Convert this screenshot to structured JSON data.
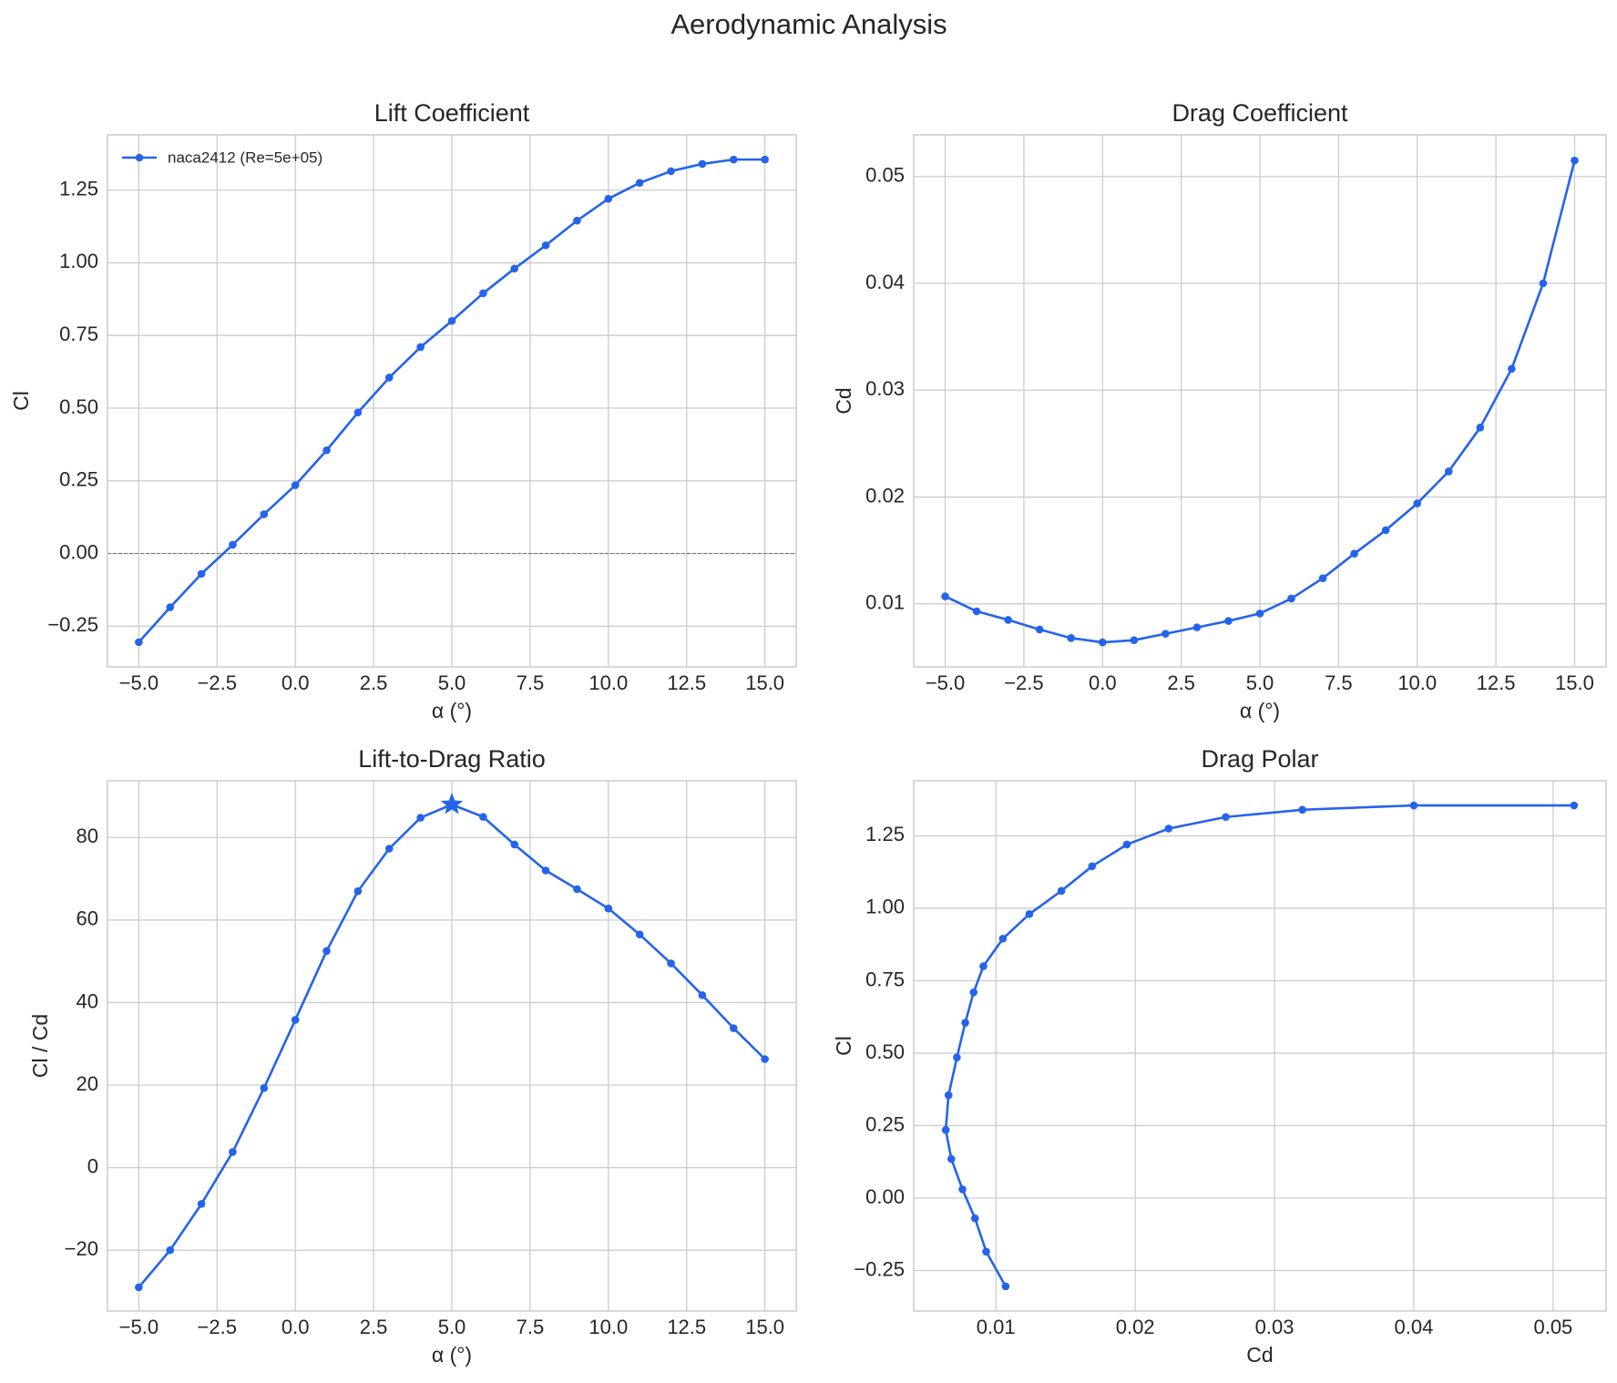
{
  "title": "Aerodynamic Analysis",
  "chart_data": [
    {
      "type": "line",
      "title": "Lift Coefficient",
      "xlabel": "α (°)",
      "ylabel": "Cl",
      "x": [
        -5,
        -4,
        -3,
        -2,
        -1,
        0,
        1,
        2,
        3,
        4,
        5,
        6,
        7,
        8,
        9,
        10,
        11,
        12,
        13,
        14,
        15
      ],
      "series": [
        {
          "name": "naca2412 (Re=5e+05)",
          "color": "#2563eb",
          "values": [
            -0.305,
            -0.185,
            -0.07,
            0.03,
            0.135,
            0.235,
            0.355,
            0.485,
            0.605,
            0.71,
            0.8,
            0.895,
            0.98,
            1.06,
            1.145,
            1.22,
            1.275,
            1.315,
            1.34,
            1.355,
            1.355
          ]
        }
      ],
      "legend": "upper left",
      "hline": 0,
      "grid": true,
      "xlim": [
        -6,
        16
      ],
      "ylim": [
        -0.39,
        1.44
      ],
      "xticks": [
        {
          "value": -5,
          "label": "−5.0"
        },
        {
          "value": -2.5,
          "label": "−2.5"
        },
        {
          "value": 0,
          "label": "0.0"
        },
        2.5,
        {
          "value": 5,
          "label": "5.0"
        },
        7.5,
        {
          "value": 10,
          "label": "10.0"
        },
        12.5,
        {
          "value": 15,
          "label": "15.0"
        }
      ],
      "yticks": [
        {
          "value": -0.25,
          "label": "−0.25"
        },
        {
          "value": 0,
          "label": "0.00"
        },
        0.25,
        {
          "value": 0.5,
          "label": "0.50"
        },
        0.75,
        {
          "value": 1,
          "label": "1.00"
        },
        1.25
      ]
    },
    {
      "type": "line",
      "title": "Drag Coefficient",
      "xlabel": "α (°)",
      "ylabel": "Cd",
      "x": [
        -5,
        -4,
        -3,
        -2,
        -1,
        0,
        1,
        2,
        3,
        4,
        5,
        6,
        7,
        8,
        9,
        10,
        11,
        12,
        13,
        14,
        15
      ],
      "series": [
        {
          "color": "#2563eb",
          "values": [
            0.0107,
            0.0093,
            0.0085,
            0.0076,
            0.0068,
            0.0064,
            0.0066,
            0.0072,
            0.0078,
            0.0084,
            0.0091,
            0.0105,
            0.0124,
            0.0147,
            0.0169,
            0.0194,
            0.0224,
            0.0265,
            0.032,
            0.04,
            0.0515
          ]
        }
      ],
      "grid": true,
      "xlim": [
        -6,
        16
      ],
      "ylim": [
        0.0041,
        0.0539
      ],
      "xticks": [
        {
          "value": -5,
          "label": "−5.0"
        },
        {
          "value": -2.5,
          "label": "−2.5"
        },
        {
          "value": 0,
          "label": "0.0"
        },
        2.5,
        {
          "value": 5,
          "label": "5.0"
        },
        7.5,
        {
          "value": 10,
          "label": "10.0"
        },
        12.5,
        {
          "value": 15,
          "label": "15.0"
        }
      ],
      "yticks": [
        0.01,
        0.02,
        0.03,
        0.04,
        0.05
      ]
    },
    {
      "type": "line",
      "title": "Lift-to-Drag Ratio",
      "xlabel": "α (°)",
      "ylabel": "Cl / Cd",
      "x": [
        -5,
        -4,
        -3,
        -2,
        -1,
        0,
        1,
        2,
        3,
        4,
        5,
        6,
        7,
        8,
        9,
        10,
        11,
        12,
        13,
        14,
        15
      ],
      "series": [
        {
          "color": "#2563eb",
          "values": [
            -29,
            -20,
            -8.8,
            3.8,
            19.3,
            35.8,
            52.5,
            67,
            77.3,
            84.8,
            88,
            85,
            78.3,
            72,
            67.5,
            62.8,
            56.5,
            49.5,
            41.8,
            33.8,
            26.3
          ]
        }
      ],
      "highlight_max": "star",
      "grid": true,
      "xlim": [
        -6,
        16
      ],
      "ylim": [
        -34.75,
        93.75
      ],
      "xticks": [
        {
          "value": -5,
          "label": "−5.0"
        },
        {
          "value": -2.5,
          "label": "−2.5"
        },
        {
          "value": 0,
          "label": "0.0"
        },
        2.5,
        {
          "value": 5,
          "label": "5.0"
        },
        7.5,
        {
          "value": 10,
          "label": "10.0"
        },
        12.5,
        {
          "value": 15,
          "label": "15.0"
        }
      ],
      "yticks": [
        {
          "value": -20,
          "label": "−20"
        },
        0,
        20,
        40,
        60,
        80
      ]
    },
    {
      "type": "line",
      "title": "Drag Polar",
      "xlabel": "Cd",
      "ylabel": "Cl",
      "x": [
        0.0107,
        0.0093,
        0.0085,
        0.0076,
        0.0068,
        0.0064,
        0.0066,
        0.0072,
        0.0078,
        0.0084,
        0.0091,
        0.0105,
        0.0124,
        0.0147,
        0.0169,
        0.0194,
        0.0224,
        0.0265,
        0.032,
        0.04,
        0.0515
      ],
      "series": [
        {
          "color": "#2563eb",
          "values": [
            -0.305,
            -0.185,
            -0.07,
            0.03,
            0.135,
            0.235,
            0.355,
            0.485,
            0.605,
            0.71,
            0.8,
            0.895,
            0.98,
            1.06,
            1.145,
            1.22,
            1.275,
            1.315,
            1.34,
            1.355,
            1.355
          ]
        }
      ],
      "grid": true,
      "xlim": [
        0.0041,
        0.0538
      ],
      "ylim": [
        -0.39,
        1.44
      ],
      "xticks": [
        0.01,
        0.02,
        0.03,
        0.04,
        0.05
      ],
      "yticks": [
        {
          "value": -0.25,
          "label": "−0.25"
        },
        {
          "value": 0,
          "label": "0.00"
        },
        0.25,
        {
          "value": 0.5,
          "label": "0.50"
        },
        0.75,
        {
          "value": 1,
          "label": "1.00"
        },
        1.25
      ]
    }
  ]
}
